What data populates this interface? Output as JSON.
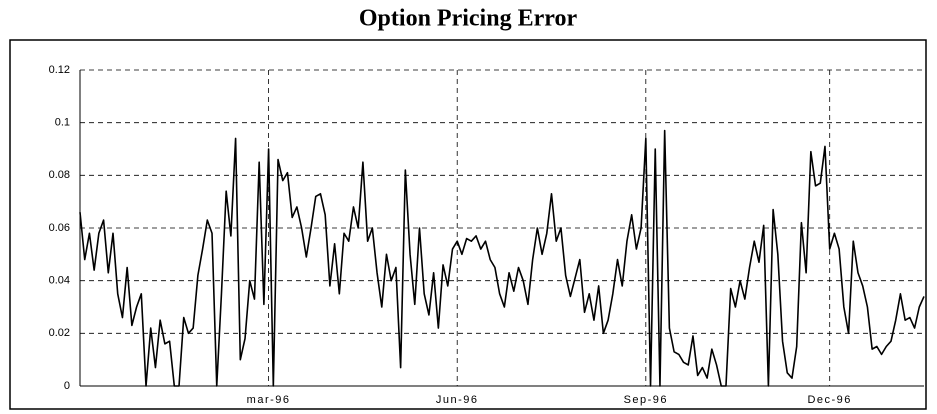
{
  "chart_data": {
    "type": "line",
    "title": "Option Pricing Error",
    "categories": [
      null,
      null,
      null,
      null,
      null,
      null,
      null,
      null,
      null,
      null,
      null,
      null,
      null,
      null,
      null,
      null,
      null,
      null,
      null,
      null,
      null,
      null,
      null,
      null,
      null,
      null,
      null,
      null,
      null,
      null,
      null,
      null,
      null,
      null,
      null,
      null,
      null,
      null,
      null,
      null,
      "mar-96",
      null,
      null,
      null,
      null,
      null,
      null,
      null,
      null,
      null,
      null,
      null,
      null,
      null,
      null,
      null,
      null,
      null,
      null,
      null,
      null,
      null,
      null,
      null,
      null,
      null,
      null,
      null,
      null,
      null,
      null,
      null,
      null,
      null,
      null,
      null,
      null,
      null,
      null,
      null,
      "Jun-96",
      null,
      null,
      null,
      null,
      null,
      null,
      null,
      null,
      null,
      null,
      null,
      null,
      null,
      null,
      null,
      null,
      null,
      null,
      null,
      null,
      null,
      null,
      null,
      null,
      null,
      null,
      null,
      null,
      null,
      null,
      null,
      null,
      null,
      null,
      null,
      null,
      null,
      null,
      null,
      "Sep-96",
      null,
      null,
      null,
      null,
      null,
      null,
      null,
      null,
      null,
      null,
      null,
      null,
      null,
      null,
      null,
      null,
      null,
      null,
      null,
      null,
      null,
      null,
      null,
      null,
      null,
      null,
      null,
      null,
      null,
      null,
      null,
      null,
      null,
      null,
      null,
      null,
      null,
      null,
      "Dec-96",
      null,
      null,
      null,
      null,
      null,
      null,
      null,
      null,
      null,
      null,
      null,
      null,
      null,
      null,
      null,
      null,
      null,
      null,
      null,
      null
    ],
    "series": [
      {
        "color": "#000000",
        "values": [
          0.066,
          0.048,
          0.058,
          0.044,
          0.058,
          0.063,
          0.043,
          0.058,
          0.035,
          0.026,
          0.045,
          0.023,
          0.03,
          0.035,
          0,
          0.022,
          0.007,
          0.025,
          0.016,
          0.017,
          0,
          0,
          0.026,
          0.02,
          0.022,
          0.042,
          0.052,
          0.063,
          0.058,
          0,
          0.035,
          0.074,
          0.057,
          0.094,
          0.01,
          0.018,
          0.04,
          0.033,
          0.085,
          0.031,
          0.09,
          0,
          0.086,
          0.078,
          0.081,
          0.064,
          0.068,
          0.06,
          0.049,
          0.06,
          0.072,
          0.073,
          0.065,
          0.038,
          0.054,
          0.035,
          0.058,
          0.055,
          0.068,
          0.06,
          0.085,
          0.055,
          0.06,
          0.043,
          0.03,
          0.05,
          0.04,
          0.045,
          0.007,
          0.082,
          0.05,
          0.031,
          0.06,
          0.035,
          0.027,
          0.043,
          0.022,
          0.046,
          0.038,
          0.052,
          0.055,
          0.05,
          0.056,
          0.055,
          0.057,
          0.052,
          0.055,
          0.048,
          0.045,
          0.035,
          0.03,
          0.043,
          0.036,
          0.045,
          0.04,
          0.031,
          0.048,
          0.06,
          0.05,
          0.058,
          0.073,
          0.055,
          0.06,
          0.042,
          0.034,
          0.041,
          0.048,
          0.028,
          0.035,
          0.025,
          0.038,
          0.02,
          0.025,
          0.035,
          0.048,
          0.038,
          0.055,
          0.065,
          0.052,
          0.06,
          0.094,
          0,
          0.09,
          0,
          0.097,
          0.022,
          0.013,
          0.012,
          0.009,
          0.008,
          0.019,
          0.004,
          0.007,
          0.003,
          0.014,
          0.008,
          0,
          0,
          0.037,
          0.03,
          0.04,
          0.033,
          0.045,
          0.055,
          0.047,
          0.061,
          0,
          0.067,
          0.05,
          0.017,
          0.005,
          0.003,
          0.015,
          0.062,
          0.043,
          0.089,
          0.076,
          0.077,
          0.091,
          0.052,
          0.058,
          0.052,
          0.03,
          0.02,
          0.055,
          0.043,
          0.038,
          0.03,
          0.014,
          0.015,
          0.012,
          0.015,
          0.017,
          0.025,
          0.035,
          0.025,
          0.026,
          0.022,
          0.03,
          0.034
        ]
      }
    ],
    "ylim": [
      0,
      0.12
    ],
    "yticks": [
      0,
      0.02,
      0.04,
      0.06,
      0.08,
      0.1,
      0.12
    ],
    "grid": true
  }
}
